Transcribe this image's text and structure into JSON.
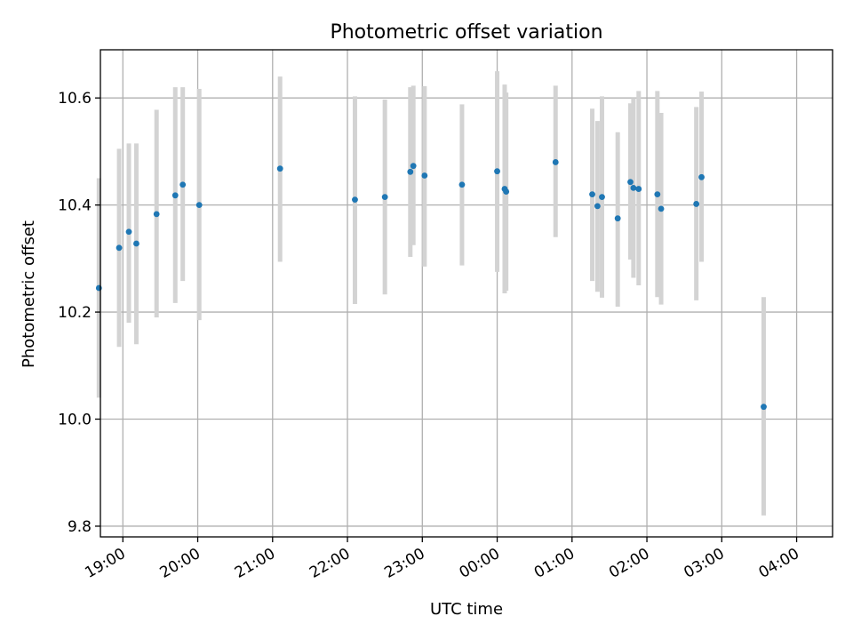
{
  "chart_data": {
    "type": "scatter",
    "title": "Photometric offset variation",
    "xlabel": "UTC time",
    "ylabel": "Photometric offset",
    "x_axis": {
      "unit": "hours since 18:00 UTC (wraps past midnight)",
      "range": [
        0.7,
        10.48
      ],
      "tick_values": [
        1,
        2,
        3,
        4,
        5,
        6,
        7,
        8,
        9,
        10
      ],
      "tick_labels": [
        "19:00",
        "20:00",
        "21:00",
        "22:00",
        "23:00",
        "00:00",
        "01:00",
        "02:00",
        "03:00",
        "04:00"
      ]
    },
    "y_axis": {
      "range": [
        9.78,
        10.69
      ],
      "tick_values": [
        9.8,
        10.0,
        10.2,
        10.4,
        10.6
      ],
      "tick_labels": [
        "9.8",
        "10.0",
        "10.2",
        "10.4",
        "10.6"
      ]
    },
    "grid": true,
    "colors": {
      "point": "#1f77b4",
      "errorbar": "#d3d3d3",
      "grid": "#b0b0b0"
    },
    "points": [
      {
        "x": 0.68,
        "y": 10.245,
        "low": 10.04,
        "high": 10.45
      },
      {
        "x": 0.95,
        "y": 10.32,
        "low": 10.135,
        "high": 10.505
      },
      {
        "x": 1.08,
        "y": 10.35,
        "low": 10.18,
        "high": 10.515
      },
      {
        "x": 1.18,
        "y": 10.328,
        "low": 10.14,
        "high": 10.515
      },
      {
        "x": 1.45,
        "y": 10.383,
        "low": 10.19,
        "high": 10.578
      },
      {
        "x": 1.7,
        "y": 10.418,
        "low": 10.217,
        "high": 10.62
      },
      {
        "x": 1.8,
        "y": 10.438,
        "low": 10.258,
        "high": 10.62
      },
      {
        "x": 2.02,
        "y": 10.4,
        "low": 10.185,
        "high": 10.617
      },
      {
        "x": 3.1,
        "y": 10.468,
        "low": 10.294,
        "high": 10.64
      },
      {
        "x": 4.1,
        "y": 10.41,
        "low": 10.215,
        "high": 10.603
      },
      {
        "x": 4.5,
        "y": 10.415,
        "low": 10.233,
        "high": 10.597
      },
      {
        "x": 4.84,
        "y": 10.462,
        "low": 10.303,
        "high": 10.62
      },
      {
        "x": 4.88,
        "y": 10.473,
        "low": 10.325,
        "high": 10.623
      },
      {
        "x": 5.03,
        "y": 10.455,
        "low": 10.285,
        "high": 10.622
      },
      {
        "x": 5.53,
        "y": 10.438,
        "low": 10.287,
        "high": 10.588
      },
      {
        "x": 6.0,
        "y": 10.463,
        "low": 10.275,
        "high": 10.65
      },
      {
        "x": 6.1,
        "y": 10.43,
        "low": 10.235,
        "high": 10.625
      },
      {
        "x": 6.12,
        "y": 10.425,
        "low": 10.24,
        "high": 10.61
      },
      {
        "x": 6.78,
        "y": 10.48,
        "low": 10.34,
        "high": 10.623
      },
      {
        "x": 7.27,
        "y": 10.42,
        "low": 10.258,
        "high": 10.58
      },
      {
        "x": 7.34,
        "y": 10.398,
        "low": 10.238,
        "high": 10.557
      },
      {
        "x": 7.4,
        "y": 10.415,
        "low": 10.227,
        "high": 10.603
      },
      {
        "x": 7.61,
        "y": 10.375,
        "low": 10.21,
        "high": 10.536
      },
      {
        "x": 7.78,
        "y": 10.443,
        "low": 10.298,
        "high": 10.59
      },
      {
        "x": 7.82,
        "y": 10.432,
        "low": 10.264,
        "high": 10.6
      },
      {
        "x": 7.89,
        "y": 10.43,
        "low": 10.25,
        "high": 10.613
      },
      {
        "x": 8.14,
        "y": 10.42,
        "low": 10.228,
        "high": 10.613
      },
      {
        "x": 8.19,
        "y": 10.393,
        "low": 10.214,
        "high": 10.572
      },
      {
        "x": 8.66,
        "y": 10.402,
        "low": 10.222,
        "high": 10.583
      },
      {
        "x": 8.73,
        "y": 10.452,
        "low": 10.294,
        "high": 10.612
      },
      {
        "x": 9.56,
        "y": 10.023,
        "low": 9.82,
        "high": 10.228
      }
    ]
  }
}
